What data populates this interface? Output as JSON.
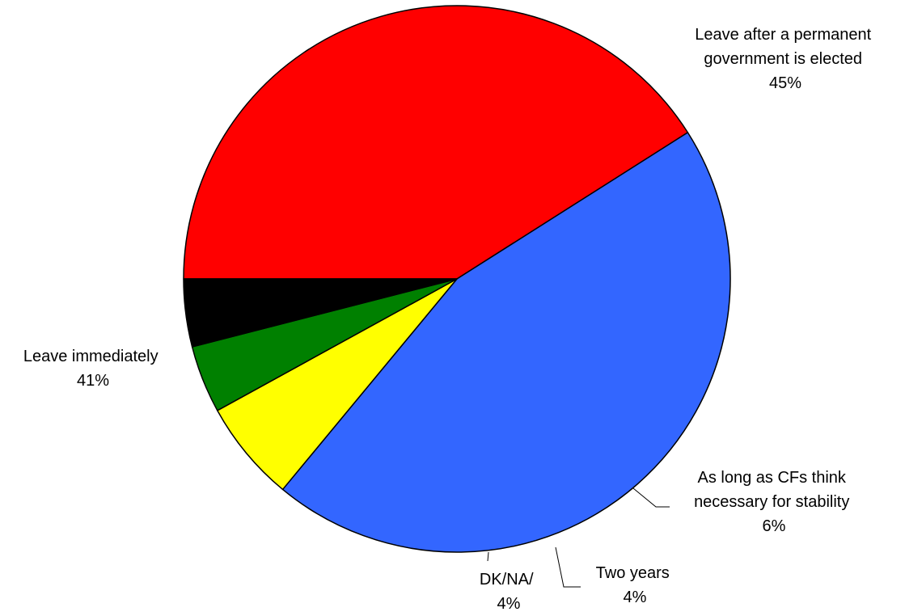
{
  "chart_data": {
    "type": "pie",
    "title": "",
    "start_angle_deg": 180,
    "direction": "clockwise",
    "slices": [
      {
        "name": "Leave immediately",
        "label_lines": [
          "Leave immediately"
        ],
        "percent_text": "41%",
        "value": 41,
        "color": "#FF0000"
      },
      {
        "name": "Leave after a permanent government is elected",
        "label_lines": [
          "Leave after a permanent",
          "government is elected"
        ],
        "percent_text": "45%",
        "value": 45,
        "color": "#3366FF"
      },
      {
        "name": "As long as CFs think necessary for stability",
        "label_lines": [
          "As long as CFs think",
          "necessary for stability"
        ],
        "percent_text": "6%",
        "value": 6,
        "color": "#FFFF00"
      },
      {
        "name": "Two years",
        "label_lines": [
          "Two years"
        ],
        "percent_text": "4%",
        "value": 4,
        "color": "#008000"
      },
      {
        "name": "DK/NA/",
        "label_lines": [
          "DK/NA/"
        ],
        "percent_text": "4%",
        "value": 4,
        "color": "#000000"
      }
    ]
  }
}
